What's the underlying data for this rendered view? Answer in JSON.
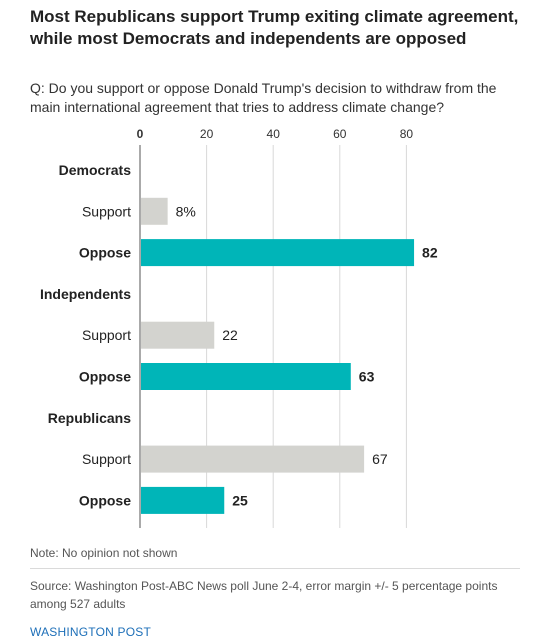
{
  "title": "Most Republicans support Trump exiting climate agreement, while most Democrats and independents are opposed",
  "question": "Q: Do you support or oppose Donald Trump's decision to withdraw from the main international agreement that tries to address climate change?",
  "note": "Note: No opinion not shown",
  "source": "Source: Washington Post-ABC News poll June 2-4, error margin +/- 5 percentage points among 527 adults",
  "brand": "WASHINGTON POST",
  "colors": {
    "support": "#d3d3cf",
    "oppose": "#00b5b8"
  },
  "chart_data": {
    "type": "bar",
    "orientation": "horizontal",
    "xlim": [
      0,
      100
    ],
    "ticks": [
      0,
      20,
      40,
      60,
      80
    ],
    "grid": true,
    "groups": [
      {
        "name": "Democrats",
        "bars": [
          {
            "label": "Support",
            "value": 8,
            "value_label": "8%"
          },
          {
            "label": "Oppose",
            "value": 82,
            "value_label": "82"
          }
        ]
      },
      {
        "name": "Independents",
        "bars": [
          {
            "label": "Support",
            "value": 22,
            "value_label": "22"
          },
          {
            "label": "Oppose",
            "value": 63,
            "value_label": "63"
          }
        ]
      },
      {
        "name": "Republicans",
        "bars": [
          {
            "label": "Support",
            "value": 67,
            "value_label": "67"
          },
          {
            "label": "Oppose",
            "value": 25,
            "value_label": "25"
          }
        ]
      }
    ]
  }
}
